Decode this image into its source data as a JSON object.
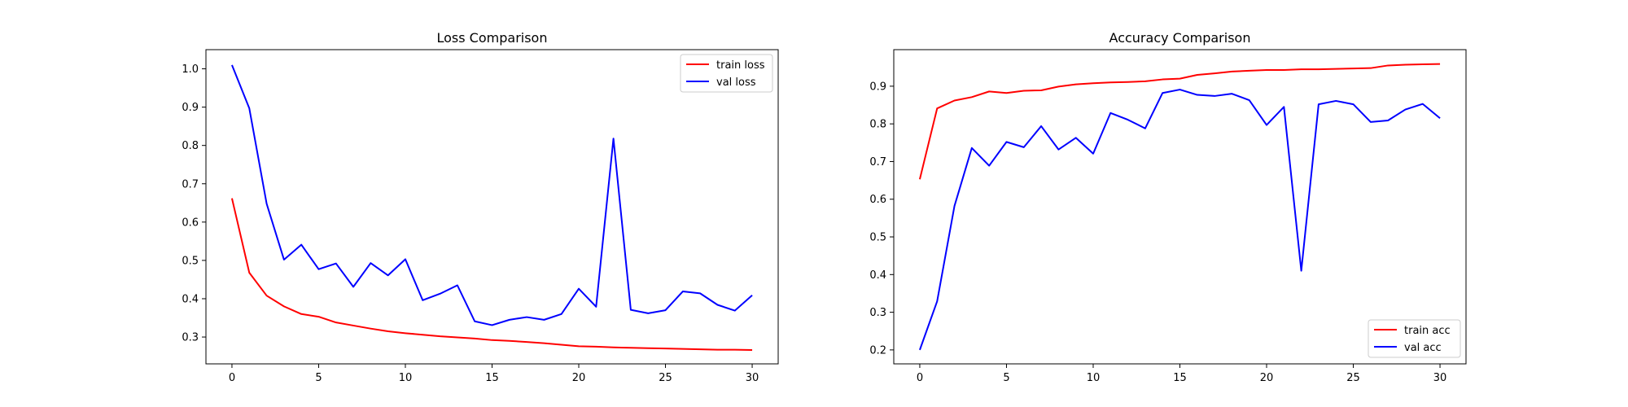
{
  "chart_data": [
    {
      "type": "line",
      "title": "Loss Comparison",
      "xlabel": "",
      "ylabel": "",
      "xlim": [
        -1.5,
        31.5
      ],
      "ylim": [
        0.23,
        1.05
      ],
      "xticks": [
        0,
        5,
        10,
        15,
        20,
        25,
        30
      ],
      "yticks": [
        0.3,
        0.4,
        0.5,
        0.6,
        0.7,
        0.8,
        0.9,
        1.0
      ],
      "ytick_labels": [
        "0.3",
        "0.4",
        "0.5",
        "0.6",
        "0.7",
        "0.8",
        "0.9",
        "1.0"
      ],
      "grid": false,
      "legend_position": "top-right",
      "x": [
        0,
        1,
        2,
        3,
        4,
        5,
        6,
        7,
        8,
        9,
        10,
        11,
        12,
        13,
        14,
        15,
        16,
        17,
        18,
        19,
        20,
        21,
        22,
        23,
        24,
        25,
        26,
        27,
        28,
        29,
        30
      ],
      "series": [
        {
          "name": "train loss",
          "color": "#ff0000",
          "values": [
            0.662,
            0.468,
            0.408,
            0.38,
            0.36,
            0.353,
            0.338,
            0.33,
            0.322,
            0.315,
            0.31,
            0.306,
            0.302,
            0.299,
            0.296,
            0.292,
            0.29,
            0.287,
            0.284,
            0.28,
            0.276,
            0.275,
            0.273,
            0.272,
            0.271,
            0.27,
            0.269,
            0.268,
            0.267,
            0.267,
            0.266
          ]
        },
        {
          "name": "val loss",
          "color": "#0000ff",
          "values": [
            1.01,
            0.897,
            0.648,
            0.502,
            0.541,
            0.477,
            0.492,
            0.431,
            0.493,
            0.461,
            0.503,
            0.396,
            0.413,
            0.435,
            0.341,
            0.331,
            0.345,
            0.352,
            0.345,
            0.36,
            0.426,
            0.379,
            0.818,
            0.371,
            0.362,
            0.37,
            0.419,
            0.414,
            0.384,
            0.369,
            0.409
          ]
        }
      ]
    },
    {
      "type": "line",
      "title": "Accuracy Comparison",
      "xlabel": "",
      "ylabel": "",
      "xlim": [
        -1.5,
        31.5
      ],
      "ylim": [
        0.163,
        0.997
      ],
      "xticks": [
        0,
        5,
        10,
        15,
        20,
        25,
        30
      ],
      "yticks": [
        0.2,
        0.3,
        0.4,
        0.5,
        0.6,
        0.7,
        0.8,
        0.9
      ],
      "ytick_labels": [
        "0.2",
        "0.3",
        "0.4",
        "0.5",
        "0.6",
        "0.7",
        "0.8",
        "0.9"
      ],
      "grid": false,
      "legend_position": "bottom-right",
      "x": [
        0,
        1,
        2,
        3,
        4,
        5,
        6,
        7,
        8,
        9,
        10,
        11,
        12,
        13,
        14,
        15,
        16,
        17,
        18,
        19,
        20,
        21,
        22,
        23,
        24,
        25,
        26,
        27,
        28,
        29,
        30
      ],
      "series": [
        {
          "name": "train acc",
          "color": "#ff0000",
          "values": [
            0.653,
            0.841,
            0.862,
            0.871,
            0.886,
            0.882,
            0.888,
            0.889,
            0.899,
            0.905,
            0.908,
            0.91,
            0.911,
            0.913,
            0.918,
            0.92,
            0.93,
            0.934,
            0.939,
            0.941,
            0.943,
            0.943,
            0.945,
            0.945,
            0.946,
            0.947,
            0.948,
            0.955,
            0.957,
            0.958,
            0.959
          ]
        },
        {
          "name": "val acc",
          "color": "#0000ff",
          "values": [
            0.2,
            0.329,
            0.582,
            0.736,
            0.689,
            0.752,
            0.738,
            0.794,
            0.732,
            0.763,
            0.721,
            0.829,
            0.811,
            0.788,
            0.882,
            0.891,
            0.877,
            0.874,
            0.88,
            0.863,
            0.797,
            0.845,
            0.41,
            0.852,
            0.861,
            0.852,
            0.805,
            0.809,
            0.838,
            0.853,
            0.815
          ]
        }
      ]
    }
  ]
}
